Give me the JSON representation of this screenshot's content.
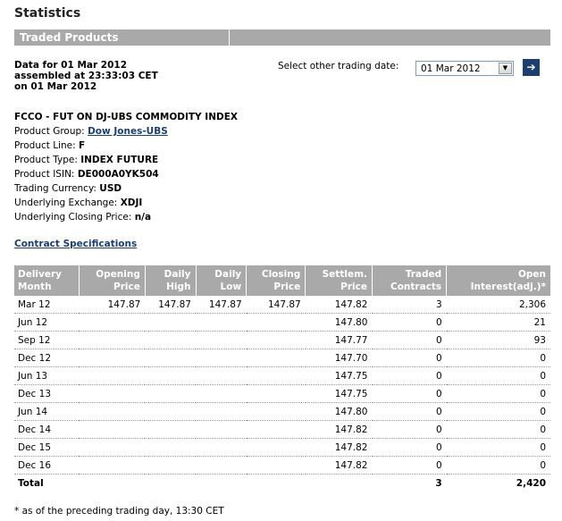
{
  "page_title": "Statistics",
  "section_title": "Traded Products",
  "data_info": {
    "line1": "Data for 01 Mar 2012",
    "line2": "assembled at 23:33:03 CET",
    "line3": "on 01 Mar 2012"
  },
  "date_picker": {
    "label": "Select other trading date:",
    "value": "01 Mar 2012",
    "go_glyph": "➔"
  },
  "product": {
    "heading": "FCCO - FUT ON DJ-UBS COMMODITY INDEX",
    "fields": [
      {
        "label": "Product Group:",
        "value": "Dow Jones-UBS",
        "link": true
      },
      {
        "label": "Product Line:",
        "value": "F"
      },
      {
        "label": "Product Type:",
        "value": "INDEX FUTURE"
      },
      {
        "label": "Product ISIN:",
        "value": "DE000A0YK504"
      },
      {
        "label": "Trading Currency:",
        "value": "USD"
      },
      {
        "label": "Underlying Exchange:",
        "value": "XDJI"
      },
      {
        "label": "Underlying Closing Price:",
        "value": "n/a"
      }
    ]
  },
  "contract_spec_link": "Contract Specifications",
  "table": {
    "headers": [
      [
        "Delivery",
        "Month"
      ],
      [
        "Opening",
        "Price"
      ],
      [
        "Daily",
        "High"
      ],
      [
        "Daily",
        "Low"
      ],
      [
        "Closing",
        "Price"
      ],
      [
        "Settlem.",
        "Price"
      ],
      [
        "Traded",
        "Contracts"
      ],
      [
        "Open",
        "Interest(adj.)*"
      ]
    ],
    "rows": [
      [
        "Mar 12",
        "147.87",
        "147.87",
        "147.87",
        "147.87",
        "147.82",
        "3",
        "2,306"
      ],
      [
        "Jun 12",
        "",
        "",
        "",
        "",
        "147.80",
        "0",
        "21"
      ],
      [
        "Sep 12",
        "",
        "",
        "",
        "",
        "147.77",
        "0",
        "93"
      ],
      [
        "Dec 12",
        "",
        "",
        "",
        "",
        "147.70",
        "0",
        "0"
      ],
      [
        "Jun 13",
        "",
        "",
        "",
        "",
        "147.75",
        "0",
        "0"
      ],
      [
        "Dec 13",
        "",
        "",
        "",
        "",
        "147.75",
        "0",
        "0"
      ],
      [
        "Jun 14",
        "",
        "",
        "",
        "",
        "147.80",
        "0",
        "0"
      ],
      [
        "Dec 14",
        "",
        "",
        "",
        "",
        "147.82",
        "0",
        "0"
      ],
      [
        "Dec 15",
        "",
        "",
        "",
        "",
        "147.82",
        "0",
        "0"
      ],
      [
        "Dec 16",
        "",
        "",
        "",
        "",
        "147.82",
        "0",
        "0"
      ]
    ],
    "total": [
      "Total",
      "",
      "",
      "",
      "",
      "",
      "3",
      "2,420"
    ]
  },
  "footnote": "* as of the preceding trading day, 13:30 CET"
}
